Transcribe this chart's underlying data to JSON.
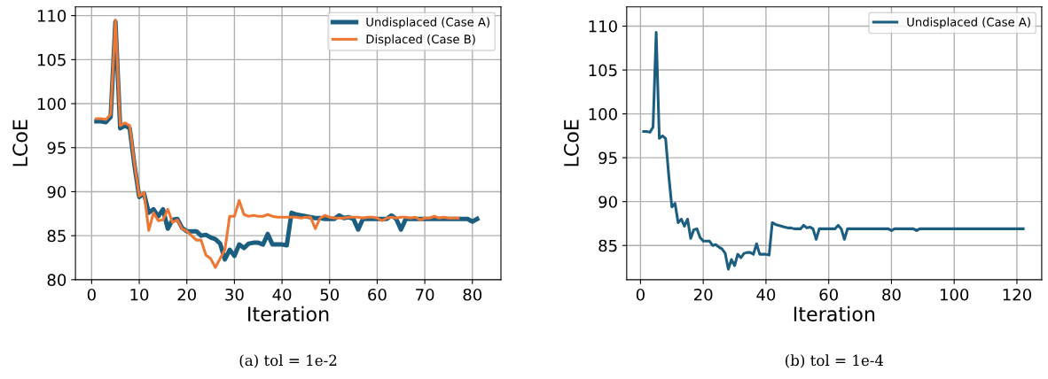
{
  "chart_data": [
    {
      "type": "line",
      "xlabel": "Iteration",
      "ylabel": "LCoE",
      "xlim": [
        -3.4,
        86
      ],
      "ylim": [
        80,
        111
      ],
      "xticks": [
        0,
        10,
        20,
        30,
        40,
        50,
        60,
        70,
        80
      ],
      "yticks": [
        80,
        85,
        90,
        95,
        100,
        105,
        110
      ],
      "grid": true,
      "legend": "top right",
      "annotations": [
        "(a) tol = 1e-2"
      ],
      "series": [
        {
          "name": "Undisplaced (Case A)",
          "color": "#1b5e80",
          "x": [
            1,
            2,
            3,
            4,
            5,
            6,
            7,
            8,
            9,
            10,
            11,
            12,
            13,
            14,
            15,
            16,
            17,
            18,
            19,
            20,
            21,
            22,
            23,
            24,
            25,
            26,
            27,
            28,
            29,
            30,
            31,
            32,
            33,
            34,
            35,
            36,
            37,
            38,
            39,
            40,
            41,
            42,
            43,
            44,
            45,
            46,
            47,
            48,
            49,
            50,
            51,
            52,
            53,
            54,
            55,
            56,
            57,
            58,
            59,
            60,
            61,
            62,
            63,
            64,
            65,
            66,
            67,
            68,
            69,
            70,
            71,
            72,
            73,
            74,
            75,
            76,
            77,
            78,
            79,
            80,
            81
          ],
          "values": [
            98.0,
            98.0,
            97.9,
            98.5,
            109.3,
            97.2,
            97.5,
            97.2,
            93.0,
            89.4,
            89.8,
            87.6,
            88.0,
            87.2,
            88.0,
            85.8,
            86.8,
            86.9,
            85.9,
            85.5,
            85.5,
            85.5,
            85.0,
            85.1,
            84.8,
            84.6,
            84.1,
            82.3,
            83.4,
            82.7,
            84.0,
            83.6,
            84.1,
            84.2,
            84.2,
            84.0,
            85.2,
            84.0,
            84.0,
            84.0,
            83.9,
            87.6,
            87.4,
            87.3,
            87.2,
            87.1,
            87.0,
            87.0,
            86.9,
            86.9,
            86.9,
            87.3,
            87.0,
            87.1,
            86.9,
            85.7,
            86.9,
            86.9,
            86.9,
            86.9,
            86.9,
            86.9,
            87.3,
            86.9,
            85.7,
            86.9,
            86.9,
            86.9,
            86.9,
            86.9,
            86.9,
            86.9,
            86.9,
            86.9,
            86.9,
            86.9,
            86.9,
            86.9,
            86.9,
            86.6,
            86.9
          ]
        },
        {
          "name": "Displaced (Case B)",
          "color": "#ee7733",
          "x": [
            1,
            2,
            3,
            4,
            5,
            6,
            7,
            8,
            9,
            10,
            11,
            12,
            13,
            14,
            15,
            16,
            17,
            18,
            19,
            20,
            21,
            22,
            23,
            24,
            25,
            26,
            27,
            28,
            29,
            30,
            31,
            32,
            33,
            34,
            35,
            36,
            37,
            38,
            39,
            40,
            41,
            42,
            43,
            44,
            45,
            46,
            47,
            48,
            49,
            50,
            51,
            52,
            53,
            54,
            55,
            56,
            57,
            58,
            59,
            60,
            61,
            62,
            63,
            64,
            65,
            66,
            67,
            68,
            69,
            70,
            71,
            72,
            73,
            74,
            75,
            76,
            77
          ],
          "values": [
            98.3,
            98.3,
            98.2,
            98.8,
            109.5,
            97.5,
            97.8,
            97.5,
            93.2,
            89.5,
            89.9,
            85.6,
            87.6,
            86.7,
            86.8,
            88.0,
            86.5,
            86.8,
            85.8,
            85.5,
            85.0,
            84.5,
            84.5,
            82.8,
            82.4,
            81.4,
            82.4,
            83.4,
            87.2,
            87.2,
            89.0,
            87.4,
            87.2,
            87.3,
            87.2,
            87.2,
            87.4,
            87.2,
            87.1,
            87.1,
            87.1,
            87.1,
            87.1,
            87.0,
            87.1,
            87.1,
            85.8,
            87.0,
            87.3,
            87.1,
            87.0,
            87.0,
            87.0,
            87.1,
            87.1,
            87.1,
            87.0,
            87.1,
            87.1,
            87.0,
            86.7,
            87.0,
            87.1,
            87.0,
            87.1,
            87.1,
            87.0,
            87.1,
            86.8,
            87.0,
            87.0,
            87.2,
            87.0,
            87.1,
            87.0,
            87.0,
            87.0
          ]
        }
      ]
    },
    {
      "type": "line",
      "xlabel": "Iteration",
      "ylabel": "LCoE",
      "xlim": [
        -4.4,
        127.9
      ],
      "ylim": [
        81.1,
        112.2
      ],
      "xticks": [
        0,
        20,
        40,
        60,
        80,
        100,
        120
      ],
      "yticks": [
        85,
        90,
        95,
        100,
        105,
        110
      ],
      "grid": true,
      "legend": "top right",
      "annotations": [
        "(b) tol = 1e-4"
      ],
      "series": [
        {
          "name": "Undisplaced (Case A)",
          "color": "#1b5e80",
          "x": [
            1,
            2,
            3,
            4,
            5,
            6,
            7,
            8,
            9,
            10,
            11,
            12,
            13,
            14,
            15,
            16,
            17,
            18,
            19,
            20,
            21,
            22,
            23,
            24,
            25,
            26,
            27,
            28,
            29,
            30,
            31,
            32,
            33,
            34,
            35,
            36,
            37,
            38,
            39,
            40,
            41,
            42,
            43,
            44,
            45,
            46,
            47,
            48,
            49,
            50,
            51,
            52,
            53,
            54,
            55,
            56,
            57,
            58,
            59,
            60,
            61,
            62,
            63,
            64,
            65,
            66,
            67,
            70,
            75,
            79,
            80,
            81,
            85,
            87,
            88,
            89,
            95,
            100,
            110,
            122
          ],
          "values": [
            98.0,
            98.0,
            97.9,
            98.5,
            109.3,
            97.2,
            97.5,
            97.2,
            93.0,
            89.4,
            89.8,
            87.6,
            88.0,
            87.2,
            88.0,
            85.8,
            86.8,
            86.9,
            85.9,
            85.5,
            85.5,
            85.5,
            85.0,
            85.1,
            84.8,
            84.6,
            84.1,
            82.3,
            83.4,
            82.7,
            84.0,
            83.6,
            84.1,
            84.2,
            84.2,
            84.0,
            85.2,
            84.0,
            84.0,
            84.0,
            83.9,
            87.6,
            87.4,
            87.3,
            87.2,
            87.1,
            87.0,
            87.0,
            86.9,
            86.9,
            86.9,
            87.3,
            87.0,
            87.1,
            86.9,
            85.7,
            86.9,
            86.9,
            86.9,
            86.9,
            86.9,
            86.9,
            87.3,
            86.9,
            85.7,
            86.9,
            86.9,
            86.9,
            86.9,
            86.9,
            86.7,
            86.9,
            86.9,
            86.9,
            86.7,
            86.9,
            86.9,
            86.9,
            86.9,
            86.9
          ]
        }
      ]
    }
  ]
}
